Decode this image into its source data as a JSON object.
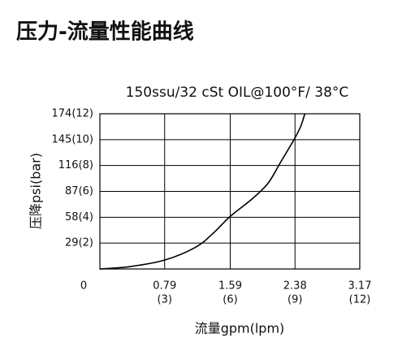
{
  "chart_data": {
    "type": "line",
    "title": "压力-流量性能曲线",
    "subtitle": "150ssu/32 cSt OIL@100°F/ 38°C",
    "x_label": "流量gpm(lpm)",
    "y_label": "压降psi(bar)",
    "xlim": [
      0,
      3.17
    ],
    "ylim": [
      0,
      174
    ],
    "xticks": [
      0,
      {
        "value": 0.79,
        "label": "0.79",
        "metric_label": "(3)"
      },
      {
        "value": 1.59,
        "label": "1.59",
        "metric_label": "(6)"
      },
      {
        "value": 2.38,
        "label": "2.38",
        "metric_label": "(9)"
      },
      {
        "value": 3.17,
        "label": "3.17",
        "metric_label": "(12)"
      }
    ],
    "yticks": [
      {
        "value": 29,
        "label": "29(2)"
      },
      {
        "value": 58,
        "label": "58(4)"
      },
      {
        "value": 87,
        "label": "87(6)"
      },
      {
        "value": 116,
        "label": "116(8)"
      },
      {
        "value": 145,
        "label": "145(10)"
      },
      {
        "value": 174,
        "label": "174(12)"
      }
    ],
    "grid": true,
    "color": "#000000",
    "x": [
      0,
      0.37,
      0.79,
      1.16,
      1.37,
      1.59,
      1.85,
      2.05,
      2.2,
      2.38,
      2.45,
      2.5
    ],
    "values": [
      0,
      2.7,
      10,
      24,
      39,
      59,
      78,
      96,
      119,
      147,
      160,
      174
    ]
  }
}
